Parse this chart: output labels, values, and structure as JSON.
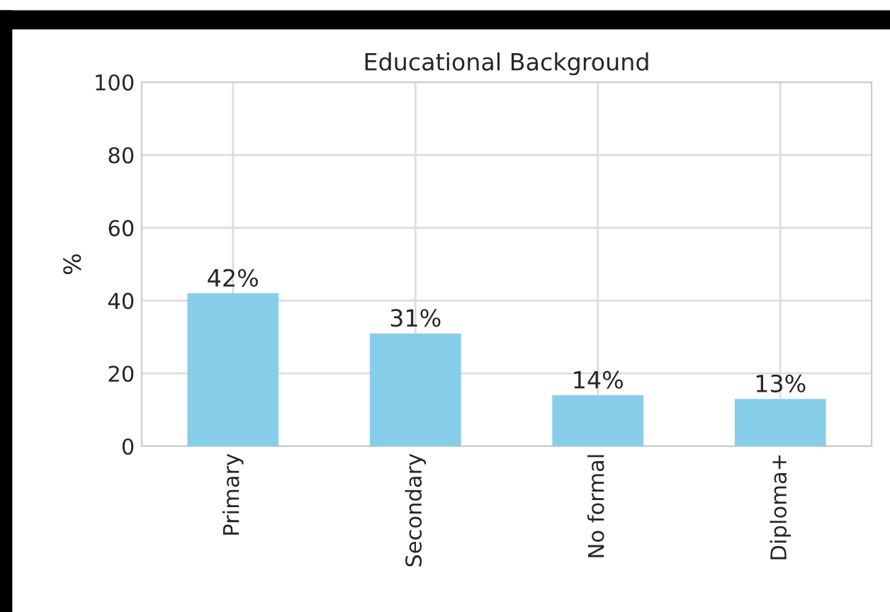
{
  "chart_data": {
    "type": "bar",
    "title": "Educational Background",
    "ylabel": "%",
    "categories": [
      "Primary",
      "Secondary",
      "No formal",
      "Diploma+"
    ],
    "values": [
      42,
      31,
      14,
      13
    ],
    "color": "#87ceeb",
    "value_labels": [
      "42%",
      "31%",
      "14%",
      "13%"
    ],
    "ylim": [
      0,
      100
    ],
    "yticks": [
      0,
      20,
      40,
      60,
      80,
      100
    ],
    "grid": true,
    "legend": false
  }
}
